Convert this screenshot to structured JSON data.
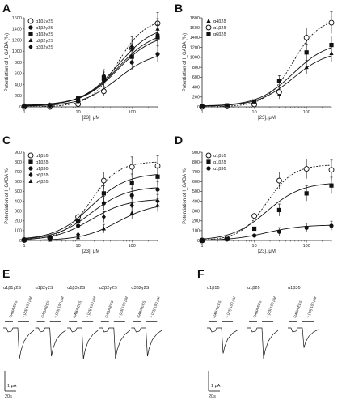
{
  "chart_data": [
    {
      "panel": "A",
      "type": "scatter",
      "xscale": "log",
      "xlim": [
        1,
        300
      ],
      "ylim": [
        0,
        1600
      ],
      "xticks": [
        "1",
        "10",
        "100"
      ],
      "yticks": [
        "0",
        "200",
        "400",
        "600",
        "800",
        "1000",
        "1200",
        "1400",
        "1600"
      ],
      "xlabel": "[23], μM",
      "ylabel": "Potentiation of I_GABA (%)",
      "legend_position": "top-left",
      "x": [
        1,
        3,
        10,
        30,
        100,
        300
      ],
      "series": [
        {
          "name": "α1β1γ2S",
          "marker": "open-circle",
          "dashed": true,
          "values": [
            0,
            0,
            50,
            280,
            1050,
            1500
          ]
        },
        {
          "name": "α1β2γ2S",
          "marker": "circle",
          "values": [
            10,
            20,
            100,
            480,
            800,
            950
          ]
        },
        {
          "name": "α1β3γ2S",
          "marker": "square",
          "values": [
            20,
            30,
            150,
            520,
            900,
            1250
          ]
        },
        {
          "name": "α2β2γ2S",
          "marker": "triangle",
          "values": [
            15,
            25,
            120,
            450,
            1100,
            1400
          ]
        },
        {
          "name": "α3β2γ2S",
          "marker": "diamond",
          "values": [
            25,
            35,
            160,
            560,
            1050,
            1300
          ]
        }
      ]
    },
    {
      "panel": "B",
      "type": "scatter",
      "xscale": "log",
      "xlim": [
        1,
        300
      ],
      "ylim": [
        0,
        1800
      ],
      "xticks": [
        "1",
        "10",
        "100"
      ],
      "yticks": [
        "0",
        "200",
        "400",
        "600",
        "800",
        "1000",
        "1200",
        "1400",
        "1600",
        "1800"
      ],
      "xlabel": "[23], μM",
      "ylabel": "Potentiation of I_GABA (%)",
      "legend_position": "top-left",
      "x": [
        1,
        3,
        10,
        30,
        100,
        300
      ],
      "series": [
        {
          "name": "α4β2δ",
          "marker": "triangle",
          "values": [
            10,
            20,
            60,
            250,
            800,
            1080
          ]
        },
        {
          "name": "α1β2δ",
          "marker": "open-circle",
          "dashed": true,
          "values": [
            0,
            10,
            50,
            300,
            1400,
            1700
          ]
        },
        {
          "name": "α6β2δ",
          "marker": "square",
          "values": [
            15,
            30,
            110,
            520,
            1100,
            1250
          ]
        }
      ]
    },
    {
      "panel": "C",
      "type": "scatter",
      "xscale": "log",
      "xlim": [
        1,
        300
      ],
      "ylim": [
        0,
        900
      ],
      "xticks": [
        "1",
        "10",
        "100"
      ],
      "yticks": [
        "0",
        "100",
        "200",
        "300",
        "400",
        "500",
        "600",
        "700",
        "800",
        "900"
      ],
      "xlabel": "[23], μM",
      "ylabel": "Potentiation of I_GABA %",
      "legend_position": "top-left",
      "x": [
        1,
        3,
        10,
        30,
        100,
        300
      ],
      "series": [
        {
          "name": "α1β1δ",
          "marker": "open-circle",
          "dashed": true,
          "values": [
            5,
            30,
            240,
            610,
            750,
            760
          ]
        },
        {
          "name": "α1β2δ",
          "marker": "square",
          "values": [
            5,
            25,
            200,
            480,
            590,
            650
          ]
        },
        {
          "name": "α1β3δ",
          "marker": "circle",
          "values": [
            5,
            20,
            150,
            380,
            460,
            520
          ]
        },
        {
          "name": "α6β2δ",
          "marker": "diamond",
          "values": [
            0,
            10,
            60,
            240,
            360,
            400
          ]
        },
        {
          "name": "α4β2δ",
          "marker": "triangle",
          "values": [
            0,
            5,
            30,
            120,
            280,
            360
          ]
        }
      ]
    },
    {
      "panel": "D",
      "type": "scatter",
      "xscale": "log",
      "xlim": [
        1,
        300
      ],
      "ylim": [
        0,
        900
      ],
      "xticks": [
        "1",
        "10",
        "100"
      ],
      "yticks": [
        "0",
        "100",
        "200",
        "300",
        "400",
        "500",
        "600",
        "700",
        "800",
        "900"
      ],
      "xlabel": "[23], μM",
      "ylabel": "Potentiation of I_GABA %",
      "legend_position": "top-left",
      "x": [
        1,
        3,
        10,
        30,
        100,
        300
      ],
      "series": [
        {
          "name": "α1β1δ",
          "marker": "open-circle",
          "dashed": true,
          "values": [
            0,
            20,
            250,
            610,
            730,
            720
          ]
        },
        {
          "name": "α1β2δ",
          "marker": "square",
          "values": [
            0,
            15,
            120,
            310,
            480,
            560
          ]
        },
        {
          "name": "α1β3δ",
          "marker": "circle",
          "values": [
            0,
            10,
            50,
            90,
            130,
            150
          ]
        }
      ]
    }
  ],
  "panels": {
    "A": "A",
    "B": "B",
    "C": "C",
    "D": "D",
    "E": "E",
    "F": "F"
  },
  "traces": {
    "E": {
      "labels": [
        "α1β1γ2S",
        "α1β2γ2S",
        "α1β3γ2S",
        "α2β2γ2S",
        "α3β2γ2S"
      ],
      "bar_gaba": "GABA EC5",
      "bar_23": "+ [23] 100 μM",
      "scale_current": "1 μA",
      "scale_time": "20s",
      "peaks": [
        0.55,
        0.5,
        0.55,
        0.55,
        0.5
      ]
    },
    "F": {
      "labels": [
        "α1β1δ",
        "α1β2δ",
        "α1β3δ"
      ],
      "bar_gaba": "GABA EC5",
      "bar_23": "+ [23] 100 μM",
      "scale_current": "1 μA",
      "scale_time": "20s",
      "peaks": [
        0.45,
        0.55,
        0.35
      ]
    }
  },
  "colors": {
    "ink": "#111111",
    "axis": "#222222"
  }
}
